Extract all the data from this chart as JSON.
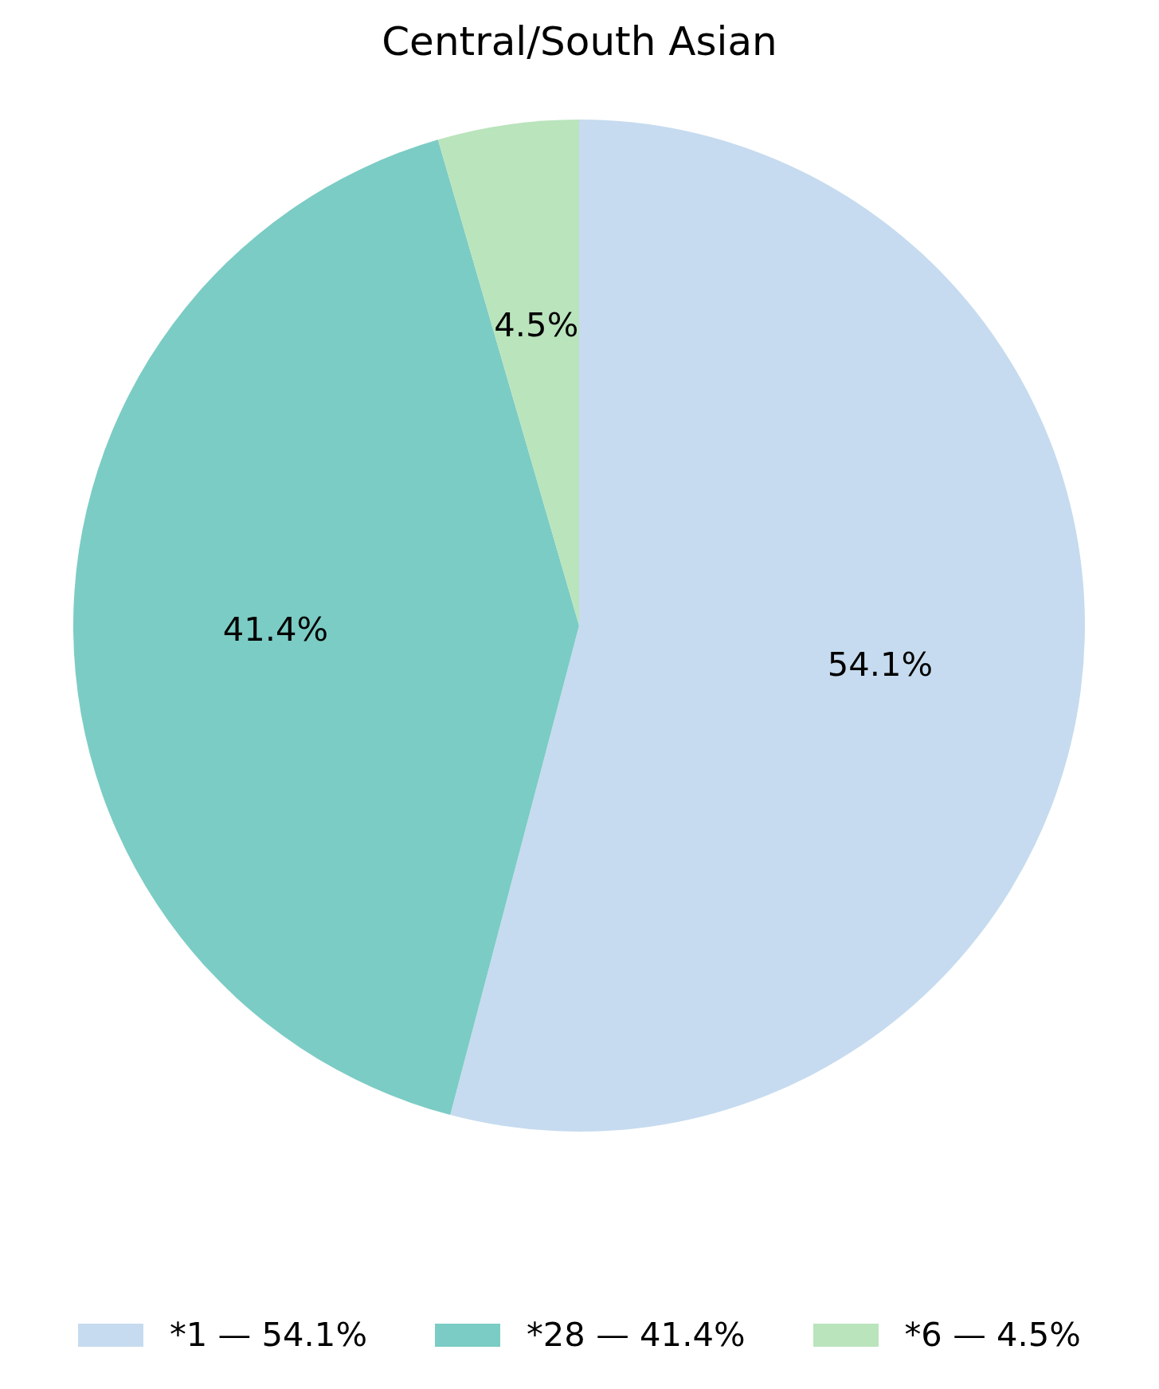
{
  "chart_data": {
    "type": "pie",
    "title": "Central/South Asian",
    "categories": [
      "*1 — 54.1%",
      "*28 — 41.4%",
      "*6 — 4.5%"
    ],
    "values": [
      54.1,
      41.4,
      4.5
    ],
    "colors": [
      "#c6dbef",
      "#7bccc4",
      "#bae4bc"
    ],
    "value_labels": [
      "54.1%",
      "41.4%",
      "4.5%"
    ],
    "legend": "bottom"
  }
}
